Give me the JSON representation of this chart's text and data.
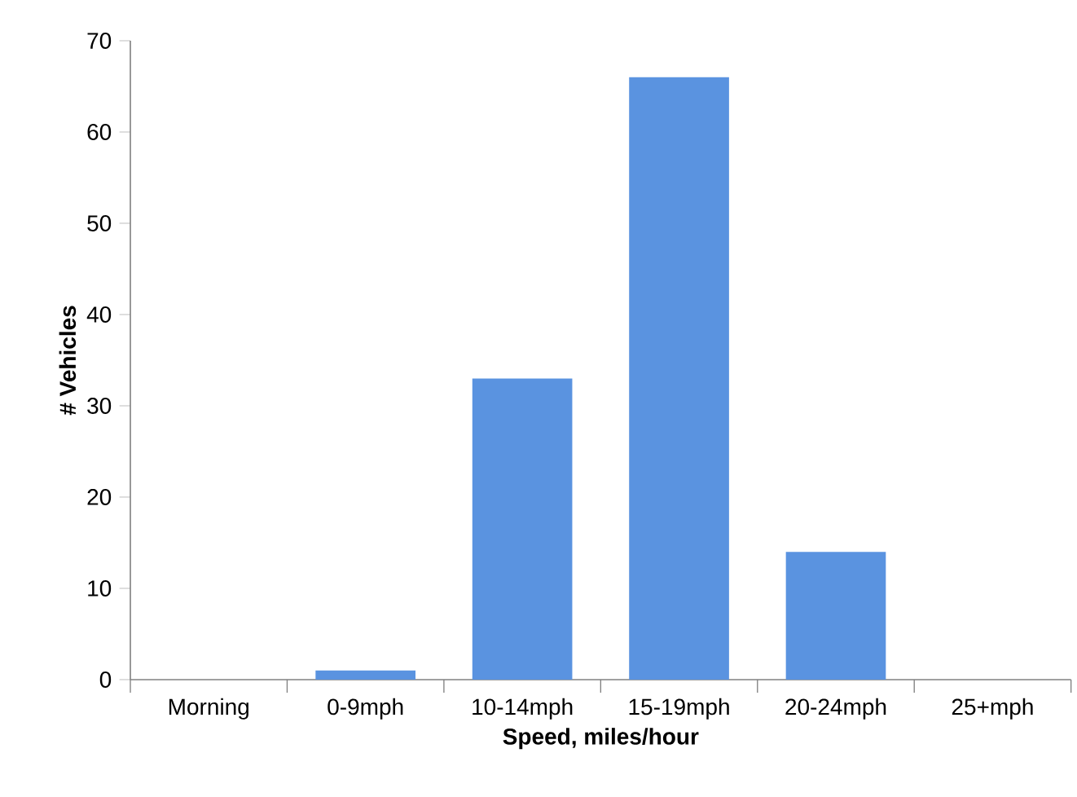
{
  "chart_data": {
    "type": "bar",
    "xlabel": "Speed, miles/hour",
    "ylabel": "# Vehicles",
    "categories": [
      "Morning",
      "0-9mph",
      "10-14mph",
      "15-19mph",
      "20-24mph",
      "25+mph"
    ],
    "values": [
      0,
      1,
      33,
      66,
      14,
      0
    ],
    "color": "#5a93e0",
    "ylim": [
      0,
      70
    ],
    "yticks": [
      0,
      10,
      20,
      30,
      40,
      50,
      60,
      70
    ],
    "grid": false
  }
}
